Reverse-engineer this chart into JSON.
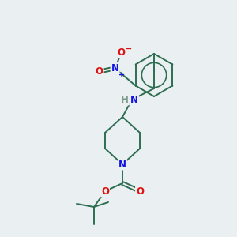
{
  "background_color": "#eaeff2",
  "bond_color": "#2d6e50",
  "atom_colors": {
    "N": "#1414e0",
    "O": "#dd1111",
    "H": "#7a9a8a"
  },
  "figsize": [
    3.0,
    3.0
  ],
  "dpi": 100
}
